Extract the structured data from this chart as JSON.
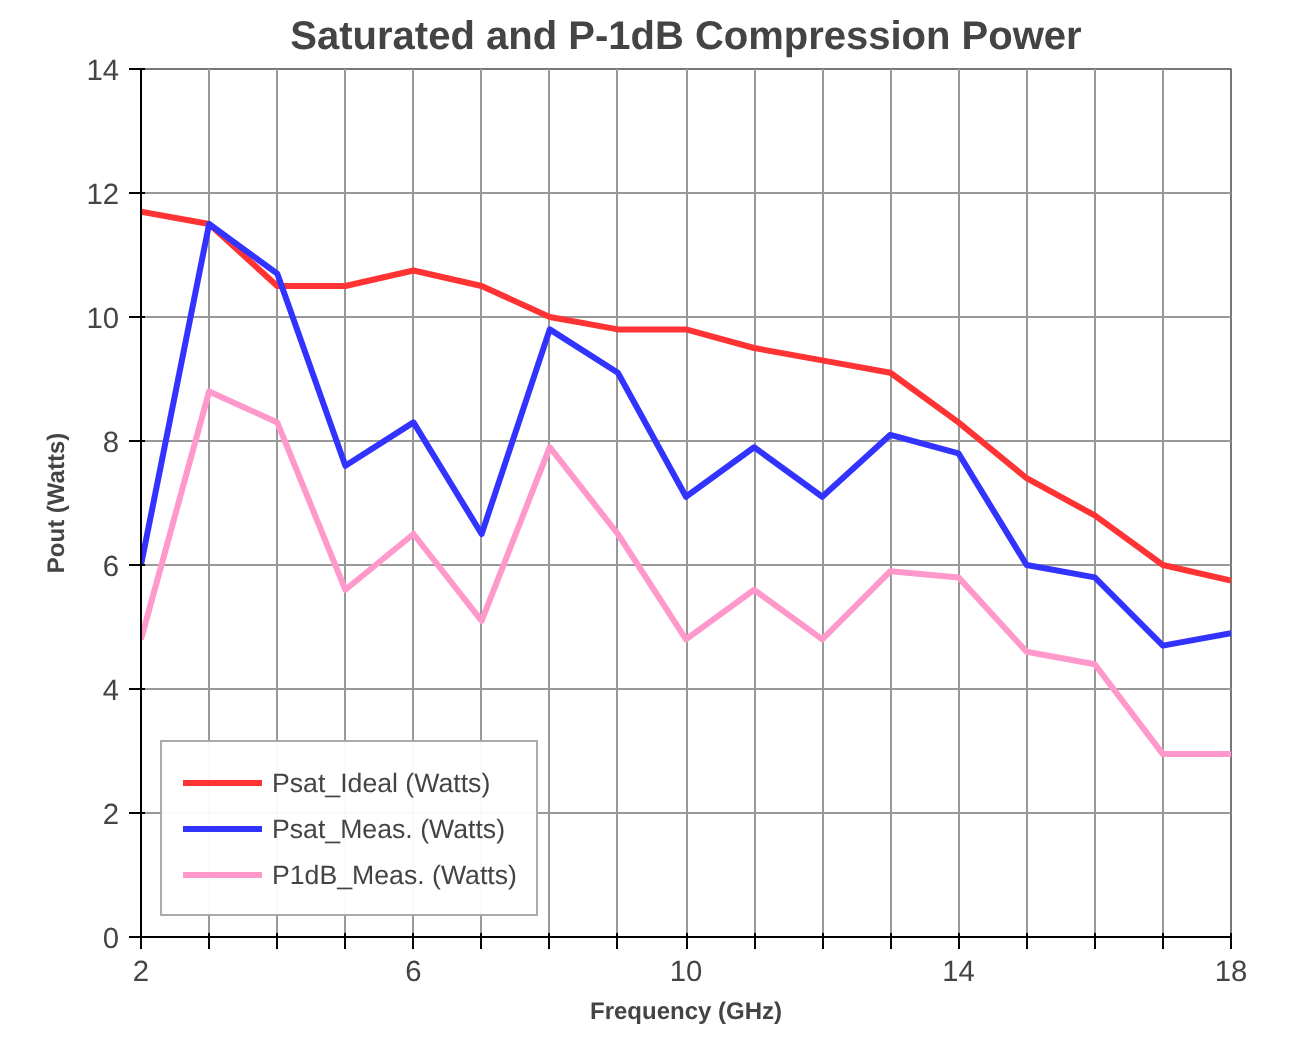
{
  "chart_data": {
    "type": "line",
    "title": "Saturated and P-1dB Compression Power",
    "xlabel": "Frequency (GHz)",
    "ylabel": "Pout (Watts)",
    "x": [
      2,
      3,
      4,
      5,
      6,
      7,
      8,
      9,
      10,
      11,
      12,
      13,
      14,
      15,
      16,
      17,
      18
    ],
    "series": [
      {
        "name": "Psat_Ideal (Watts)",
        "color": "#ff3333",
        "values": [
          11.7,
          11.5,
          10.5,
          10.5,
          10.75,
          10.5,
          10.0,
          9.8,
          9.8,
          9.5,
          9.3,
          9.1,
          8.3,
          7.4,
          6.8,
          6.0,
          5.75
        ]
      },
      {
        "name": "Psat_Meas. (Watts)",
        "color": "#3333ff",
        "values": [
          6.0,
          11.5,
          10.7,
          7.6,
          8.3,
          6.5,
          9.8,
          9.1,
          7.1,
          7.9,
          7.1,
          8.1,
          7.8,
          6.0,
          5.8,
          4.7,
          4.9
        ]
      },
      {
        "name": "P1dB_Meas. (Watts)",
        "color": "#ff99cc",
        "values": [
          4.8,
          8.8,
          8.3,
          5.6,
          6.5,
          5.1,
          7.9,
          6.5,
          4.8,
          5.6,
          4.8,
          5.9,
          5.8,
          4.6,
          4.4,
          2.95,
          2.95
        ]
      }
    ],
    "xlim": [
      2,
      18
    ],
    "ylim": [
      0,
      14
    ],
    "xticks": [
      2,
      {
        "value": 3,
        "label": null
      },
      {
        "value": 4,
        "label": null
      },
      {
        "value": 5,
        "label": null
      },
      6,
      {
        "value": 7,
        "label": null
      },
      {
        "value": 8,
        "label": null
      },
      {
        "value": 9,
        "label": null
      },
      10,
      {
        "value": 11,
        "label": null
      },
      {
        "value": 12,
        "label": null
      },
      {
        "value": 13,
        "label": null
      },
      14,
      {
        "value": 15,
        "label": null
      },
      {
        "value": 16,
        "label": null
      },
      {
        "value": 17,
        "label": null
      },
      18
    ],
    "yticks": [
      0,
      2,
      4,
      6,
      8,
      10,
      12,
      14
    ],
    "grid": true,
    "legend": "bottom left",
    "marker": "none",
    "line_style": "solid"
  }
}
